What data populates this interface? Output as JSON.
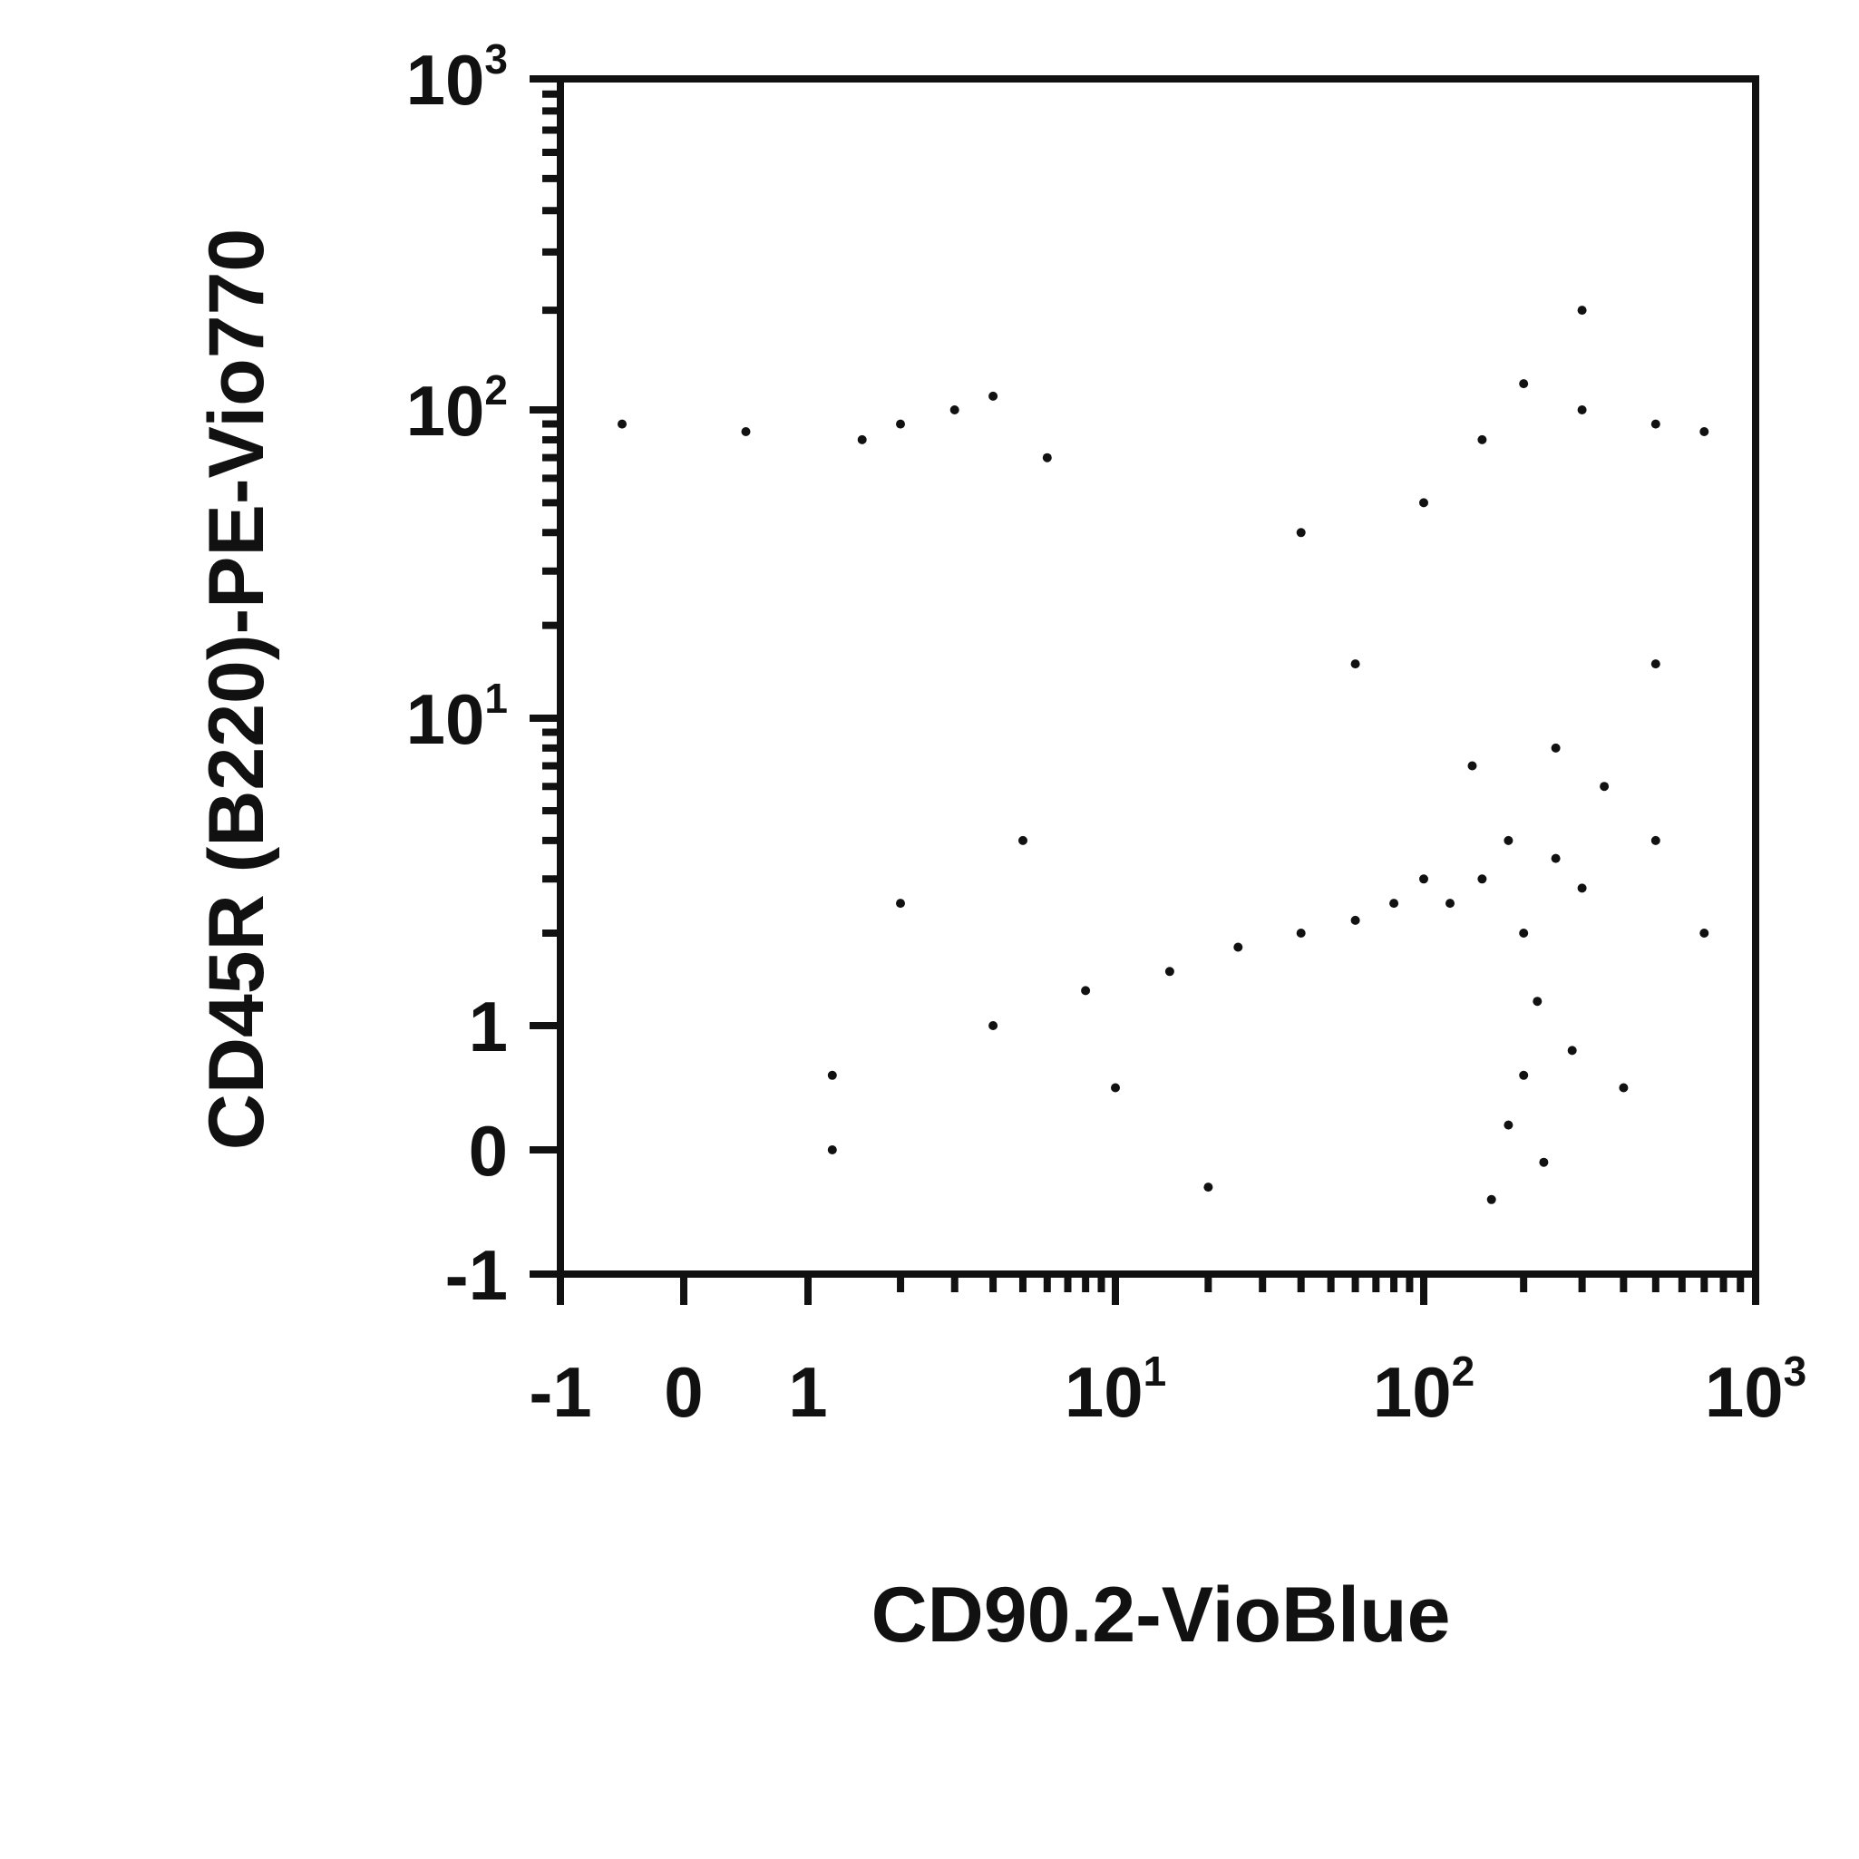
{
  "chart_data": {
    "type": "scatter",
    "title": "",
    "xlabel": "CD90.2-VioBlue",
    "ylabel": "CD45R (B220)-PE-Vio770",
    "xscale": "biexponential",
    "yscale": "biexponential",
    "xlim": [
      -1,
      1000
    ],
    "ylim": [
      -1,
      1000
    ],
    "grid": false,
    "legend": "none",
    "point_color": "#111111",
    "x_ticks": [
      {
        "value": -1,
        "label": "-1",
        "sup": ""
      },
      {
        "value": 0,
        "label": "0",
        "sup": ""
      },
      {
        "value": 1,
        "label": "1",
        "sup": ""
      },
      {
        "value": 10,
        "label": "10",
        "sup": "1"
      },
      {
        "value": 100,
        "label": "10",
        "sup": "2"
      },
      {
        "value": 1000,
        "label": "10",
        "sup": "3"
      }
    ],
    "y_ticks": [
      {
        "value": -1,
        "label": "-1",
        "sup": ""
      },
      {
        "value": 0,
        "label": "0",
        "sup": ""
      },
      {
        "value": 1,
        "label": "1",
        "sup": ""
      },
      {
        "value": 10,
        "label": "10",
        "sup": "1"
      },
      {
        "value": 100,
        "label": "10",
        "sup": "2"
      },
      {
        "value": 1000,
        "label": "10",
        "sup": "3"
      }
    ],
    "series": [
      {
        "values": [
          {
            "x": 150,
            "y": 3.0
          },
          {
            "x": 120,
            "y": 2.5
          },
          {
            "x": 180,
            "y": 4.0
          },
          {
            "x": 200,
            "y": 2.0
          },
          {
            "x": 250,
            "y": 3.5
          },
          {
            "x": 100,
            "y": 3.0
          },
          {
            "x": 80,
            "y": 2.5
          },
          {
            "x": 300,
            "y": 2.8
          },
          {
            "x": 220,
            "y": 1.2
          },
          {
            "x": 200,
            "y": 0.6
          },
          {
            "x": 180,
            "y": 0.2
          },
          {
            "x": 230,
            "y": -0.1
          },
          {
            "x": 160,
            "y": -0.4
          },
          {
            "x": 280,
            "y": 0.8
          },
          {
            "x": 60,
            "y": 2.2
          },
          {
            "x": 40,
            "y": 2.0
          },
          {
            "x": 25,
            "y": 1.8
          },
          {
            "x": 15,
            "y": 1.5
          },
          {
            "x": 8,
            "y": 1.3
          },
          {
            "x": 4,
            "y": 1.0
          },
          {
            "x": 350,
            "y": 6.0
          },
          {
            "x": 500,
            "y": 4.0
          },
          {
            "x": 700,
            "y": 2.0
          },
          {
            "x": 400,
            "y": 0.5
          },
          {
            "x": 140,
            "y": 7.0
          },
          {
            "x": 250,
            "y": 8.0
          },
          {
            "x": 150,
            "y": 80
          },
          {
            "x": 300,
            "y": 100
          },
          {
            "x": 500,
            "y": 90
          },
          {
            "x": 200,
            "y": 120
          },
          {
            "x": 700,
            "y": 85
          },
          {
            "x": 2,
            "y": 90
          },
          {
            "x": 4,
            "y": 110
          },
          {
            "x": 6,
            "y": 70
          },
          {
            "x": 3,
            "y": 100
          },
          {
            "x": 1.5,
            "y": 80
          },
          {
            "x": -0.5,
            "y": 90
          },
          {
            "x": 0.5,
            "y": 85
          },
          {
            "x": 40,
            "y": 40
          },
          {
            "x": 100,
            "y": 50
          },
          {
            "x": 300,
            "y": 200
          },
          {
            "x": 60,
            "y": 15
          },
          {
            "x": 500,
            "y": 15
          },
          {
            "x": 5,
            "y": 4
          },
          {
            "x": 2,
            "y": 2.5
          },
          {
            "x": 1.2,
            "y": 0.6
          },
          {
            "x": 10,
            "y": 0.5
          },
          {
            "x": 20,
            "y": -0.3
          },
          {
            "x": 1.2,
            "y": 0.0
          }
        ]
      }
    ]
  }
}
